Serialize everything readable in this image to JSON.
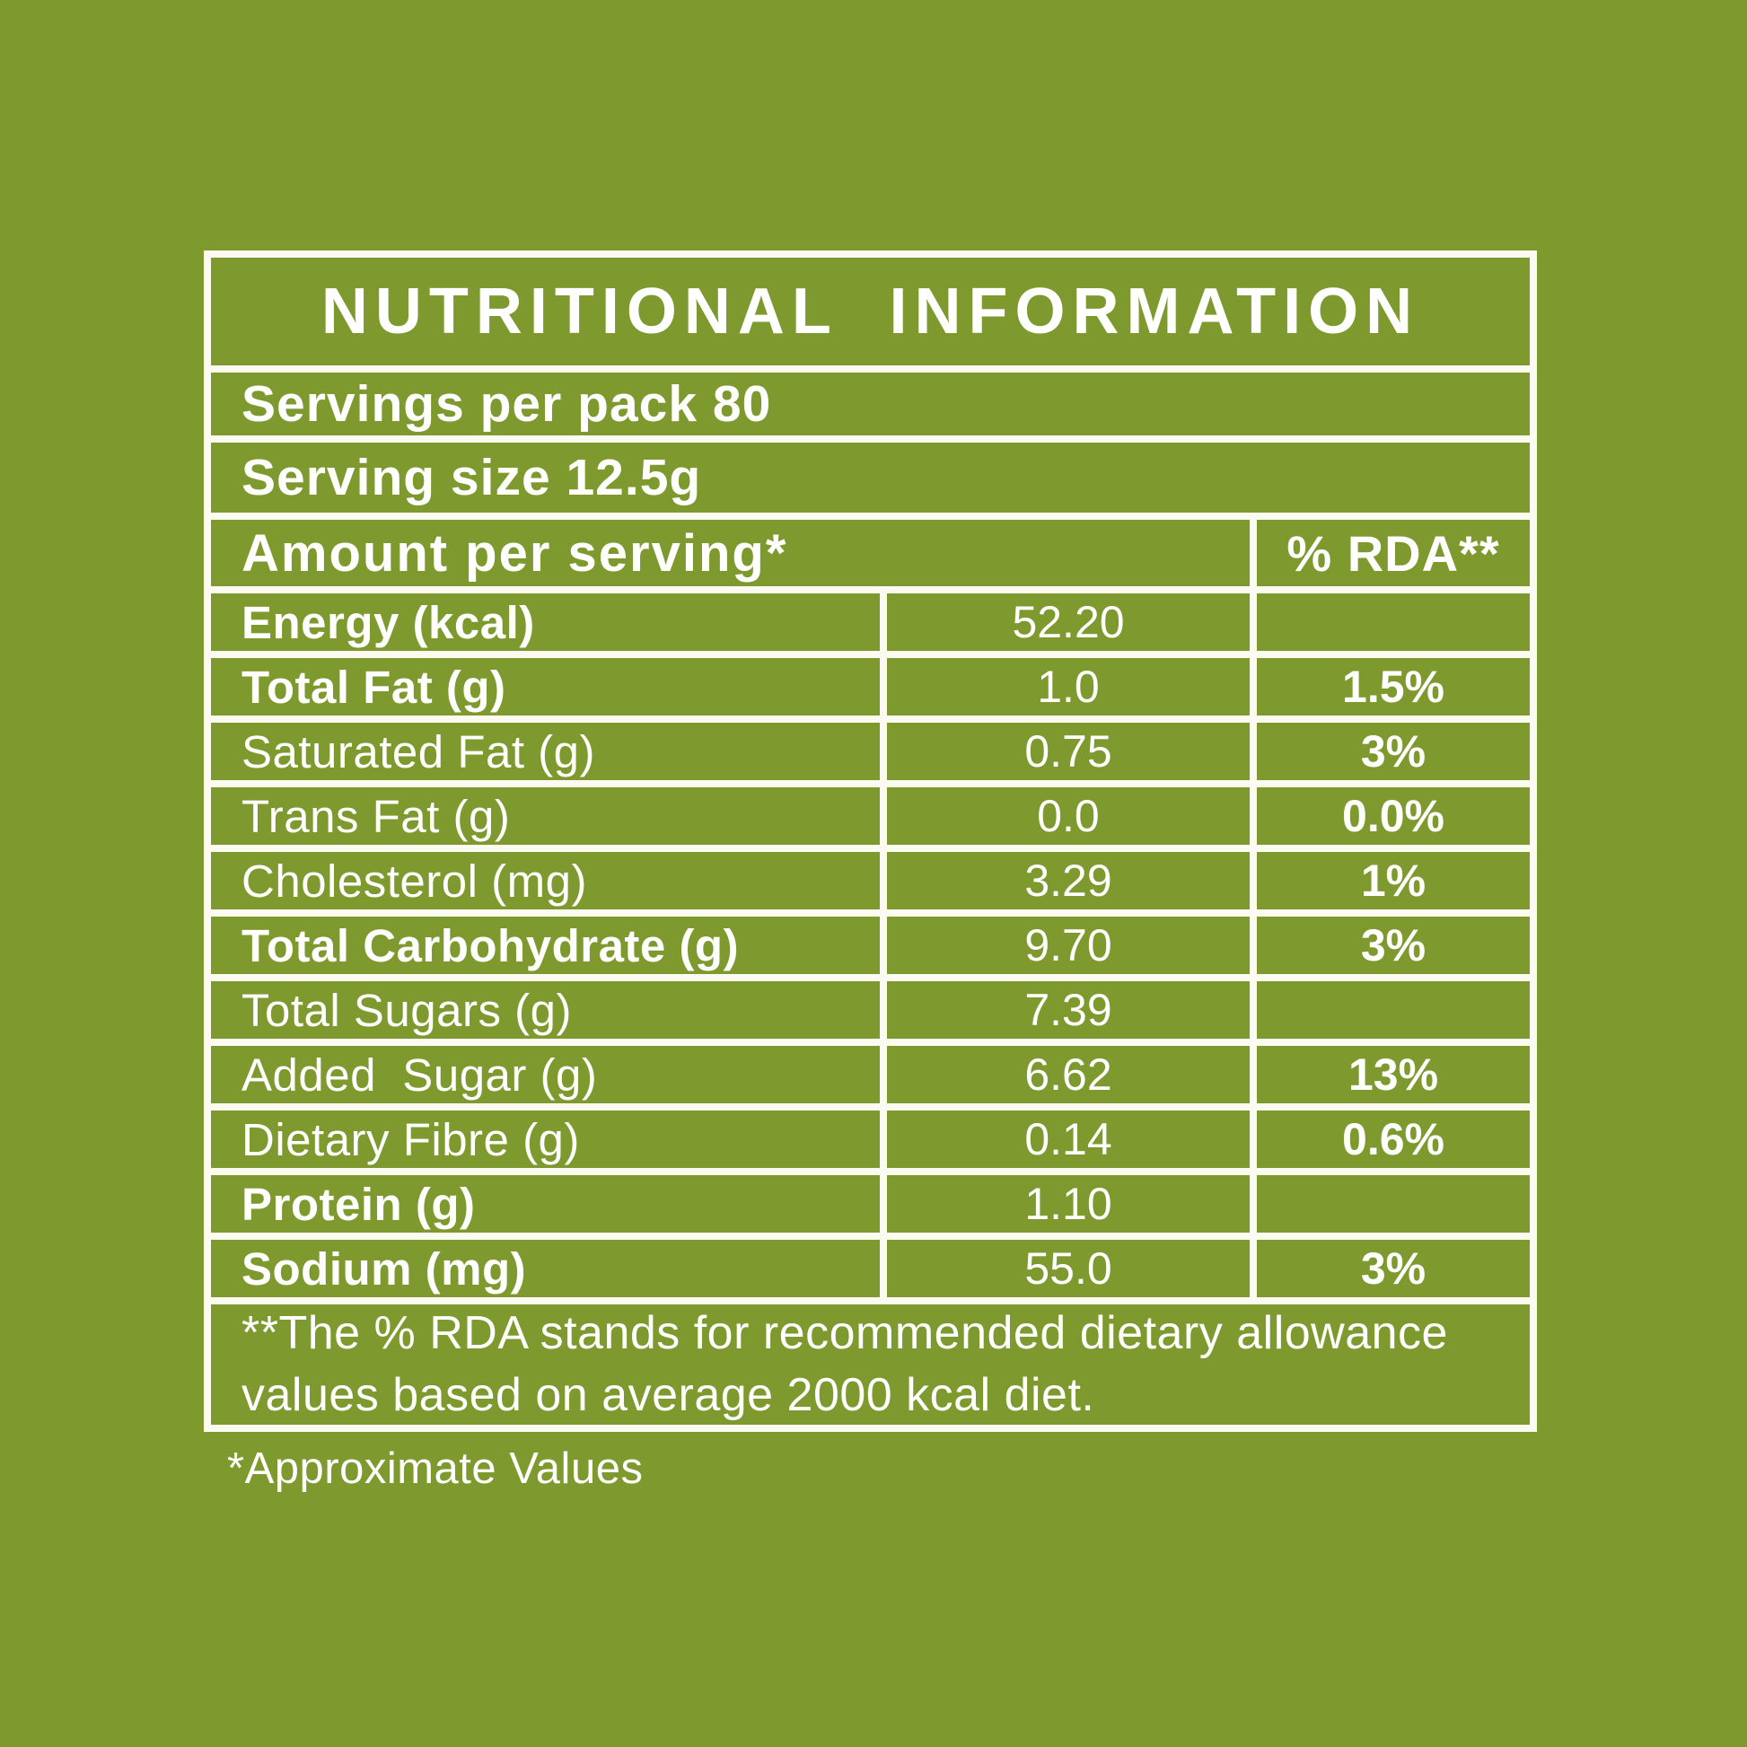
{
  "page": {
    "background_color": "#7E9A2E",
    "panel_line_color": "#FBFBF2",
    "text_color": "#FFFFFF"
  },
  "label": {
    "title": "NUTRITIONAL INFORMATION",
    "servings_per_pack": "Servings per pack 80",
    "serving_size": "Serving size 12.5g",
    "columns": {
      "amount": "Amount per serving*",
      "rda": "% RDA**"
    },
    "rows": [
      {
        "label": "Energy (kcal)",
        "amount": "52.20",
        "rda": "",
        "bold": true
      },
      {
        "label": "Total Fat (g)",
        "amount": "1.0",
        "rda": "1.5%",
        "bold": true
      },
      {
        "label": "Saturated Fat (g)",
        "amount": "0.75",
        "rda": "3%",
        "bold": false
      },
      {
        "label": "Trans Fat (g)",
        "amount": "0.0",
        "rda": "0.0%",
        "bold": false
      },
      {
        "label": "Cholesterol (mg)",
        "amount": "3.29",
        "rda": "1%",
        "bold": false
      },
      {
        "label": "Total Carbohydrate (g)",
        "amount": "9.70",
        "rda": "3%",
        "bold": true
      },
      {
        "label": "Total Sugars (g)",
        "amount": "7.39",
        "rda": "",
        "bold": false
      },
      {
        "label": "Added  Sugar (g)",
        "amount": "6.62",
        "rda": "13%",
        "bold": false
      },
      {
        "label": "Dietary Fibre (g)",
        "amount": "0.14",
        "rda": "0.6%",
        "bold": false
      },
      {
        "label": "Protein (g)",
        "amount": "1.10",
        "rda": "",
        "bold": true
      },
      {
        "label": "Sodium (mg)",
        "amount": "55.0",
        "rda": "3%",
        "bold": true
      }
    ],
    "footnote": "**The % RDA stands for recommended dietary allowance values based on average 2000 kcal diet.",
    "approximate_note": "*Approximate Values"
  }
}
